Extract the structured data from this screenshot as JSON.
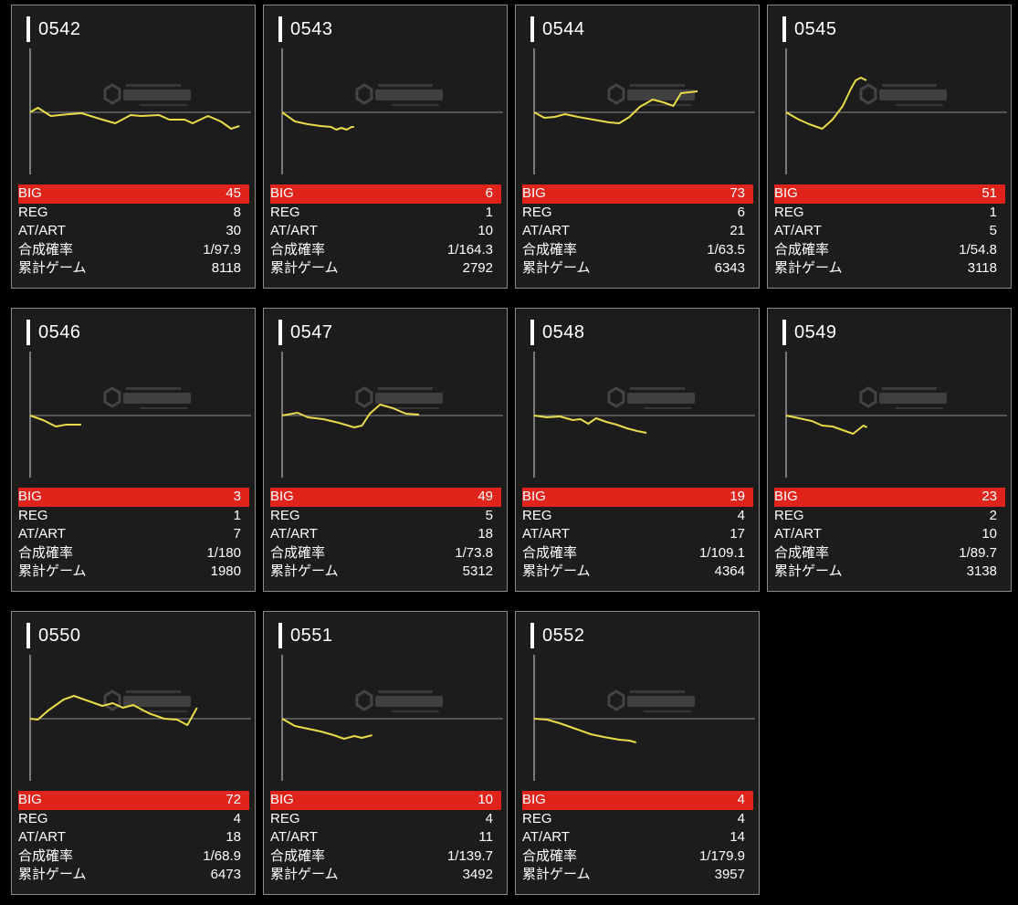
{
  "labels": {
    "big": "BIG",
    "reg": "REG",
    "at": "AT/ART",
    "prob": "合成確率",
    "games": "累計ゲーム"
  },
  "colors": {
    "big_bar": "#e0241b",
    "graph_line": "#e8dc4a",
    "card_bg": "#1c1c1c"
  },
  "machines": [
    {
      "id": "0542",
      "big": "45",
      "reg": "8",
      "at": "30",
      "prob": "1/97.9",
      "games": "8118",
      "graph": [
        [
          0,
          0
        ],
        [
          300,
          5
        ],
        [
          800,
          -4
        ],
        [
          1500,
          -2
        ],
        [
          2000,
          -1
        ],
        [
          2800,
          -8
        ],
        [
          3300,
          -12
        ],
        [
          3900,
          -3
        ],
        [
          4300,
          -4
        ],
        [
          5000,
          -3
        ],
        [
          5400,
          -8
        ],
        [
          6000,
          -8
        ],
        [
          6300,
          -12
        ],
        [
          6900,
          -4
        ],
        [
          7400,
          -10
        ],
        [
          7800,
          -18
        ],
        [
          8118,
          -15
        ]
      ]
    },
    {
      "id": "0543",
      "big": "6",
      "reg": "1",
      "at": "10",
      "prob": "1/164.3",
      "games": "2792",
      "graph": [
        [
          0,
          0
        ],
        [
          500,
          -10
        ],
        [
          1000,
          -13
        ],
        [
          1500,
          -15
        ],
        [
          1900,
          -16
        ],
        [
          2100,
          -19
        ],
        [
          2300,
          -17
        ],
        [
          2500,
          -19
        ],
        [
          2700,
          -16
        ],
        [
          2792,
          -16
        ]
      ]
    },
    {
      "id": "0544",
      "big": "73",
      "reg": "6",
      "at": "21",
      "prob": "1/63.5",
      "games": "6343",
      "graph": [
        [
          0,
          0
        ],
        [
          400,
          -6
        ],
        [
          800,
          -5
        ],
        [
          1200,
          -2
        ],
        [
          1700,
          -5
        ],
        [
          2300,
          -8
        ],
        [
          2900,
          -11
        ],
        [
          3300,
          -12
        ],
        [
          3700,
          -5
        ],
        [
          4100,
          6
        ],
        [
          4600,
          14
        ],
        [
          5000,
          11
        ],
        [
          5400,
          7
        ],
        [
          5700,
          21
        ],
        [
          6343,
          23
        ]
      ]
    },
    {
      "id": "0545",
      "big": "51",
      "reg": "1",
      "at": "5",
      "prob": "1/54.8",
      "games": "3118",
      "graph": [
        [
          0,
          0
        ],
        [
          500,
          -8
        ],
        [
          900,
          -13
        ],
        [
          1400,
          -18
        ],
        [
          1800,
          -8
        ],
        [
          2200,
          7
        ],
        [
          2500,
          25
        ],
        [
          2700,
          35
        ],
        [
          2900,
          38
        ],
        [
          3118,
          35
        ]
      ]
    },
    {
      "id": "0546",
      "big": "3",
      "reg": "1",
      "at": "7",
      "prob": "1/180",
      "games": "1980",
      "graph": [
        [
          0,
          0
        ],
        [
          500,
          -5
        ],
        [
          1000,
          -12
        ],
        [
          1400,
          -10
        ],
        [
          1800,
          -10
        ],
        [
          1980,
          -10
        ]
      ]
    },
    {
      "id": "0547",
      "big": "49",
      "reg": "5",
      "at": "18",
      "prob": "1/73.8",
      "games": "5312",
      "graph": [
        [
          0,
          0
        ],
        [
          600,
          3
        ],
        [
          1000,
          -2
        ],
        [
          1600,
          -4
        ],
        [
          2200,
          -8
        ],
        [
          2800,
          -13
        ],
        [
          3100,
          -11
        ],
        [
          3400,
          2
        ],
        [
          3800,
          12
        ],
        [
          4300,
          8
        ],
        [
          4800,
          2
        ],
        [
          5312,
          1
        ]
      ]
    },
    {
      "id": "0548",
      "big": "19",
      "reg": "4",
      "at": "17",
      "prob": "1/109.1",
      "games": "4364",
      "graph": [
        [
          0,
          0
        ],
        [
          500,
          -2
        ],
        [
          1000,
          -1
        ],
        [
          1500,
          -5
        ],
        [
          1800,
          -4
        ],
        [
          2100,
          -9
        ],
        [
          2400,
          -3
        ],
        [
          2800,
          -7
        ],
        [
          3200,
          -10
        ],
        [
          3600,
          -14
        ],
        [
          4000,
          -17
        ],
        [
          4364,
          -19
        ]
      ]
    },
    {
      "id": "0549",
      "big": "23",
      "reg": "2",
      "at": "10",
      "prob": "1/89.7",
      "games": "3138",
      "graph": [
        [
          0,
          0
        ],
        [
          500,
          -3
        ],
        [
          1000,
          -6
        ],
        [
          1400,
          -11
        ],
        [
          1800,
          -12
        ],
        [
          2200,
          -16
        ],
        [
          2600,
          -20
        ],
        [
          3000,
          -11
        ],
        [
          3138,
          -13
        ]
      ]
    },
    {
      "id": "0550",
      "big": "72",
      "reg": "4",
      "at": "18",
      "prob": "1/68.9",
      "games": "6473",
      "graph": [
        [
          0,
          0
        ],
        [
          300,
          -1
        ],
        [
          700,
          9
        ],
        [
          1300,
          21
        ],
        [
          1700,
          25
        ],
        [
          2200,
          20
        ],
        [
          2800,
          14
        ],
        [
          3200,
          17
        ],
        [
          3600,
          12
        ],
        [
          4000,
          15
        ],
        [
          4600,
          6
        ],
        [
          5200,
          0
        ],
        [
          5700,
          -1
        ],
        [
          6100,
          -7
        ],
        [
          6473,
          12
        ]
      ]
    },
    {
      "id": "0551",
      "big": "10",
      "reg": "4",
      "at": "11",
      "prob": "1/139.7",
      "games": "3492",
      "graph": [
        [
          0,
          0
        ],
        [
          500,
          -8
        ],
        [
          1000,
          -11
        ],
        [
          1500,
          -14
        ],
        [
          2000,
          -18
        ],
        [
          2400,
          -22
        ],
        [
          2800,
          -19
        ],
        [
          3100,
          -21
        ],
        [
          3492,
          -18
        ]
      ]
    },
    {
      "id": "0552",
      "big": "4",
      "reg": "4",
      "at": "14",
      "prob": "1/179.9",
      "games": "3957",
      "graph": [
        [
          0,
          0
        ],
        [
          500,
          -1
        ],
        [
          1000,
          -5
        ],
        [
          1600,
          -11
        ],
        [
          2200,
          -17
        ],
        [
          2700,
          -20
        ],
        [
          3300,
          -23
        ],
        [
          3700,
          -24
        ],
        [
          3957,
          -26
        ]
      ]
    }
  ],
  "graph_scale": {
    "x_max": 8500,
    "y_range": [
      -60,
      60
    ]
  }
}
